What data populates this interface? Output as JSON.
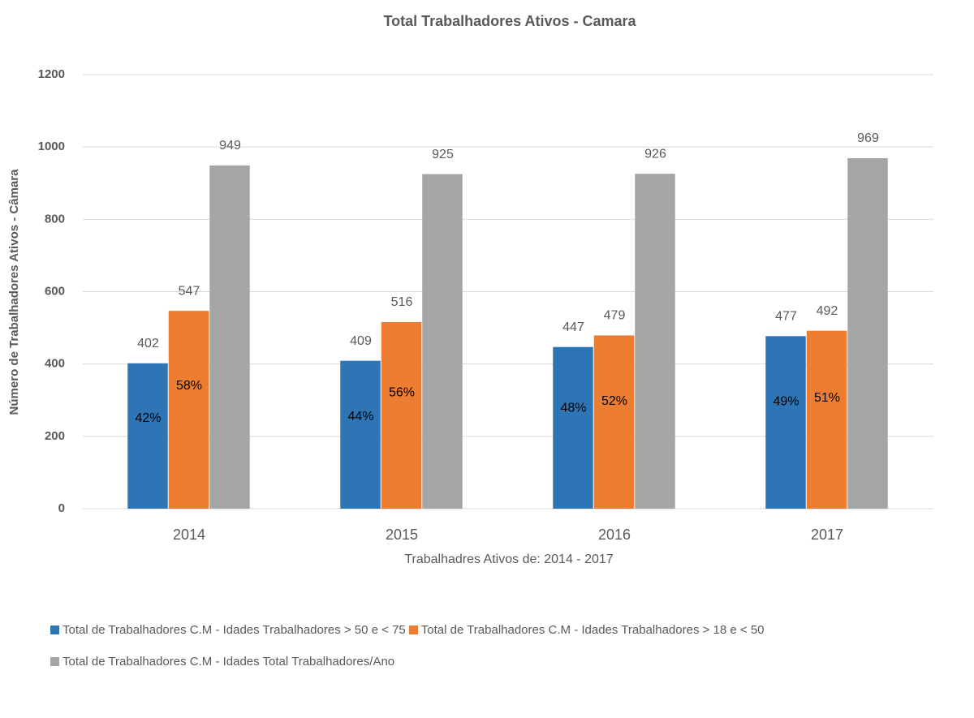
{
  "chart_data": {
    "type": "bar",
    "title": "Total Trabalhadores Ativos - Camara",
    "x_label": "Trabalhadres Ativos de: 2014 - 2017",
    "y_label": "Número de Trabalhadores Ativos - Câmara",
    "categories": [
      "2014",
      "2015",
      "2016",
      "2017"
    ],
    "series": [
      {
        "name": "Total de Trabalhadores  C.M - Idades Trabalhadores > 50 e < 75",
        "color": "#2e75b6",
        "values": [
          402,
          409,
          447,
          477
        ],
        "share_labels": [
          "42%",
          "44%",
          "48%",
          "49%"
        ]
      },
      {
        "name": "Total de Trabalhadores  C.M - Idades Trabalhadores > 18 e < 50",
        "color": "#ed7d31",
        "values": [
          547,
          516,
          479,
          492
        ],
        "share_labels": [
          "58%",
          "56%",
          "52%",
          "51%"
        ]
      },
      {
        "name": "Total de Trabalhadores  C.M - Idades Total Trabalhadores/Ano",
        "color": "#a5a5a5",
        "values": [
          949,
          925,
          926,
          969
        ]
      }
    ],
    "ylim": [
      0,
      1200
    ],
    "yticks": [
      0,
      200,
      400,
      600,
      800,
      1000,
      1200
    ],
    "grid": true,
    "legend": "bottom"
  }
}
